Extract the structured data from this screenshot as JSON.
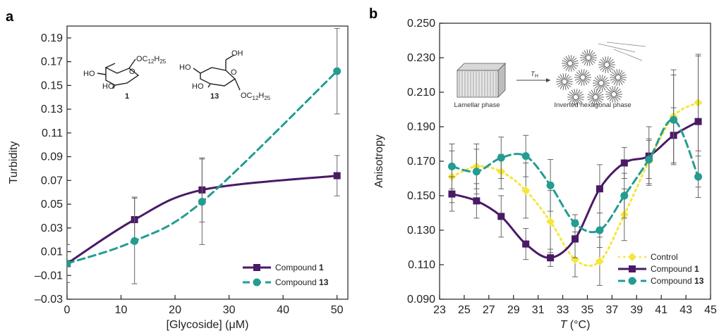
{
  "chart_data": [
    {
      "panel": "a",
      "type": "line",
      "xlabel_parts": [
        "[Glycoside] (",
        "μ",
        "M)"
      ],
      "ylabel": "Turbidity",
      "xlim": [
        0,
        52
      ],
      "ylim": [
        -0.03,
        0.2
      ],
      "xticks": [
        "0",
        "10",
        "20",
        "30",
        "40",
        "50"
      ],
      "yticks": [
        "–0.03",
        "–0.01",
        "0.01",
        "0.03",
        "0.05",
        "0.07",
        "0.09",
        "0.11",
        "0.13",
        "0.15",
        "0.17",
        "0.19"
      ],
      "legend_position": "bottom-right",
      "series": [
        {
          "name_prefix": "Compound ",
          "name_bold": "1",
          "color": "#4a1a66",
          "marker": "square",
          "dash": "solid",
          "x": [
            0,
            12.5,
            25,
            50
          ],
          "y": [
            0.0,
            0.037,
            0.062,
            0.074
          ],
          "err": [
            0.016,
            0.019,
            0.027,
            0.017
          ]
        },
        {
          "name_prefix": "Compound ",
          "name_bold": "13",
          "color": "#239c91",
          "marker": "circle",
          "dash": "dashed",
          "x": [
            0,
            12.5,
            25,
            50
          ],
          "y": [
            0.0,
            0.019,
            0.052,
            0.162
          ],
          "err": [
            0.016,
            0.036,
            0.036,
            0.036
          ]
        }
      ],
      "structures": [
        {
          "number": "1",
          "ho_top": "HO",
          "ho_bottom": "HO",
          "chain": "OC",
          "chain_sub1": "12",
          "chain_mid": "H",
          "chain_sub2": "25"
        },
        {
          "number": "13",
          "oh_top": "OH",
          "ho_top": "HO",
          "ho_bottom": "HO",
          "chain": "OC",
          "chain_sub1": "12",
          "chain_mid": "H",
          "chain_sub2": "25"
        }
      ]
    },
    {
      "panel": "b",
      "type": "line",
      "xlabel_italic": "T",
      "xlabel_rest": " (°C)",
      "ylabel": "Anisotropy",
      "xlim": [
        23,
        45
      ],
      "ylim": [
        0.09,
        0.25
      ],
      "xticks": [
        "23",
        "25",
        "27",
        "29",
        "31",
        "33",
        "35",
        "37",
        "39",
        "41",
        "43",
        "45"
      ],
      "yticks": [
        "0.090",
        "0.110",
        "0.130",
        "0.150",
        "0.170",
        "0.190",
        "0.210",
        "0.230",
        "0.250"
      ],
      "legend_position": "bottom-right",
      "series": [
        {
          "name_prefix": "Control",
          "name_bold": "",
          "color": "#f5e63a",
          "marker": "diamond",
          "dash": "dotted",
          "x": [
            24,
            26,
            28,
            30,
            32,
            34,
            36,
            38,
            40,
            42,
            44
          ],
          "y": [
            0.161,
            0.167,
            0.164,
            0.153,
            0.135,
            0.113,
            0.112,
            0.139,
            0.17,
            0.196,
            0.204
          ],
          "err": [
            0.015,
            0.013,
            0.01,
            0.016,
            0.018,
            0.01,
            0.014,
            0.015,
            0.013,
            0.027,
            0.028
          ]
        },
        {
          "name_prefix": "Compound ",
          "name_bold": "1",
          "color": "#4a1a66",
          "marker": "square",
          "dash": "solid",
          "x": [
            24,
            26,
            28,
            30,
            32,
            34,
            36,
            38,
            40,
            42,
            44
          ],
          "y": [
            0.151,
            0.147,
            0.138,
            0.122,
            0.114,
            0.125,
            0.154,
            0.169,
            0.173,
            0.185,
            0.193
          ],
          "err": [
            0.01,
            0.01,
            0.012,
            0.009,
            0.005,
            0.011,
            0.014,
            0.009,
            0.017,
            0.016,
            0.038
          ]
        },
        {
          "name_prefix": "Compound ",
          "name_bold": "13",
          "color": "#239c91",
          "marker": "circle",
          "dash": "dashed",
          "x": [
            24,
            26,
            28,
            30,
            32,
            34,
            36,
            38,
            40,
            42,
            44
          ],
          "y": [
            0.167,
            0.164,
            0.172,
            0.173,
            0.156,
            0.134,
            0.13,
            0.15,
            0.171,
            0.194,
            0.161
          ],
          "err": [
            0.013,
            0.013,
            0.012,
            0.012,
            0.015,
            0.005,
            0.01,
            0.013,
            0.011,
            0.026,
            0.012
          ]
        }
      ],
      "inset": {
        "left_label": "Lamellar phase",
        "arrow_label": "T",
        "arrow_label_sub": "H",
        "right_label": "Inverted hexagonal phase"
      }
    }
  ]
}
